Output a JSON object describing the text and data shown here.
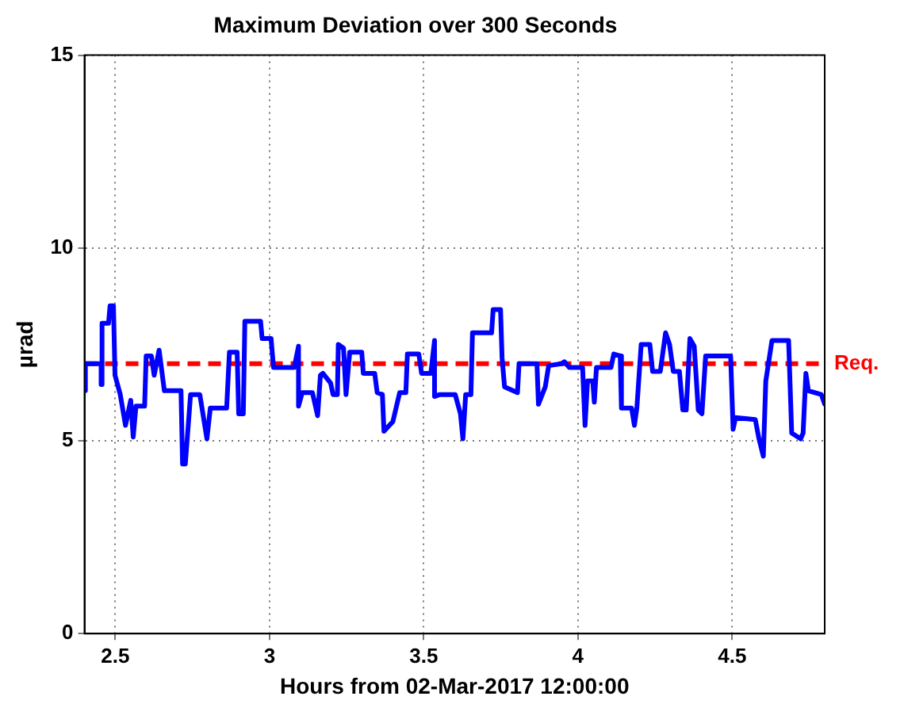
{
  "chart_data": {
    "type": "line",
    "title": "Maximum Deviation over 300 Seconds",
    "xlabel": "Hours from 02-Mar-2017 12:00:00",
    "ylabel": "µrad",
    "xlim": [
      2.4,
      4.8
    ],
    "xticks": [
      2.5,
      3,
      3.5,
      4,
      4.5
    ],
    "ylim": [
      0,
      15
    ],
    "yticks": [
      0,
      5,
      10,
      15
    ],
    "grid": true,
    "line_style": "solid",
    "marker": "none",
    "series": [
      {
        "color": "#0000ff",
        "x": [
          2.4,
          2.403,
          2.403,
          2.454,
          2.454,
          2.457,
          2.457,
          2.478,
          2.483,
          2.494,
          2.499,
          2.516,
          2.533,
          2.55,
          2.558,
          2.567,
          2.595,
          2.6,
          2.617,
          2.626,
          2.642,
          2.659,
          2.713,
          2.718,
          2.727,
          2.744,
          2.774,
          2.786,
          2.797,
          2.808,
          2.861,
          2.87,
          2.895,
          2.9,
          2.915,
          2.92,
          2.971,
          2.976,
          3.005,
          3.013,
          3.08,
          3.094,
          3.094,
          3.106,
          3.139,
          3.156,
          3.165,
          3.173,
          3.198,
          3.206,
          3.22,
          3.223,
          3.24,
          3.248,
          3.26,
          3.299,
          3.304,
          3.341,
          3.349,
          3.366,
          3.371,
          3.4,
          3.422,
          3.442,
          3.447,
          3.484,
          3.493,
          3.523,
          3.535,
          3.535,
          3.552,
          3.602,
          3.619,
          3.627,
          3.636,
          3.653,
          3.658,
          3.72,
          3.725,
          3.749,
          3.754,
          3.762,
          3.804,
          3.809,
          3.867,
          3.872,
          3.894,
          3.905,
          3.947,
          3.956,
          3.972,
          4.015,
          4.023,
          4.031,
          4.048,
          4.053,
          4.06,
          4.107,
          4.116,
          4.137,
          4.141,
          4.174,
          4.183,
          4.191,
          4.205,
          4.233,
          4.242,
          4.267,
          4.284,
          4.297,
          4.309,
          4.329,
          4.34,
          4.351,
          4.363,
          4.377,
          4.39,
          4.402,
          4.414,
          4.495,
          4.503,
          4.511,
          4.575,
          4.587,
          4.601,
          4.609,
          4.629,
          4.683,
          4.693,
          4.722,
          4.73,
          4.739,
          4.747,
          4.789,
          4.8
        ],
        "values": [
          6.3,
          6.3,
          7.0,
          7.0,
          6.46,
          6.46,
          8.05,
          8.05,
          8.5,
          8.5,
          6.7,
          6.2,
          5.4,
          6.05,
          5.1,
          5.9,
          5.9,
          7.2,
          7.2,
          6.7,
          7.35,
          6.3,
          6.3,
          4.4,
          4.4,
          6.2,
          6.2,
          5.6,
          5.05,
          5.85,
          5.85,
          7.3,
          7.3,
          5.7,
          5.7,
          8.1,
          8.1,
          7.65,
          7.65,
          6.9,
          6.9,
          7.45,
          5.9,
          6.25,
          6.25,
          5.65,
          6.7,
          6.75,
          6.5,
          6.2,
          6.2,
          7.5,
          7.4,
          6.2,
          7.3,
          7.3,
          6.75,
          6.75,
          6.25,
          6.2,
          5.25,
          5.5,
          6.25,
          6.25,
          7.25,
          7.25,
          6.75,
          6.75,
          7.6,
          6.15,
          6.2,
          6.2,
          5.7,
          5.05,
          6.2,
          6.2,
          7.8,
          7.8,
          8.4,
          8.4,
          7.15,
          6.4,
          6.25,
          7.0,
          7.0,
          5.95,
          6.4,
          6.95,
          7.0,
          7.05,
          6.9,
          6.9,
          5.4,
          6.55,
          6.55,
          6.0,
          6.9,
          6.9,
          7.25,
          7.2,
          5.85,
          5.85,
          5.4,
          5.85,
          7.5,
          7.5,
          6.8,
          6.8,
          7.8,
          7.5,
          6.8,
          6.8,
          5.8,
          5.8,
          7.65,
          7.45,
          5.8,
          5.7,
          7.2,
          7.2,
          5.3,
          5.6,
          5.55,
          5.05,
          4.6,
          6.55,
          7.6,
          7.6,
          5.2,
          5.05,
          5.2,
          6.75,
          6.3,
          6.2,
          5.95
        ]
      }
    ],
    "ref_lines": [
      {
        "axis": "y",
        "value": 7,
        "label": "Req.",
        "color": "#ff0000",
        "line_style": "dashed"
      }
    ]
  }
}
